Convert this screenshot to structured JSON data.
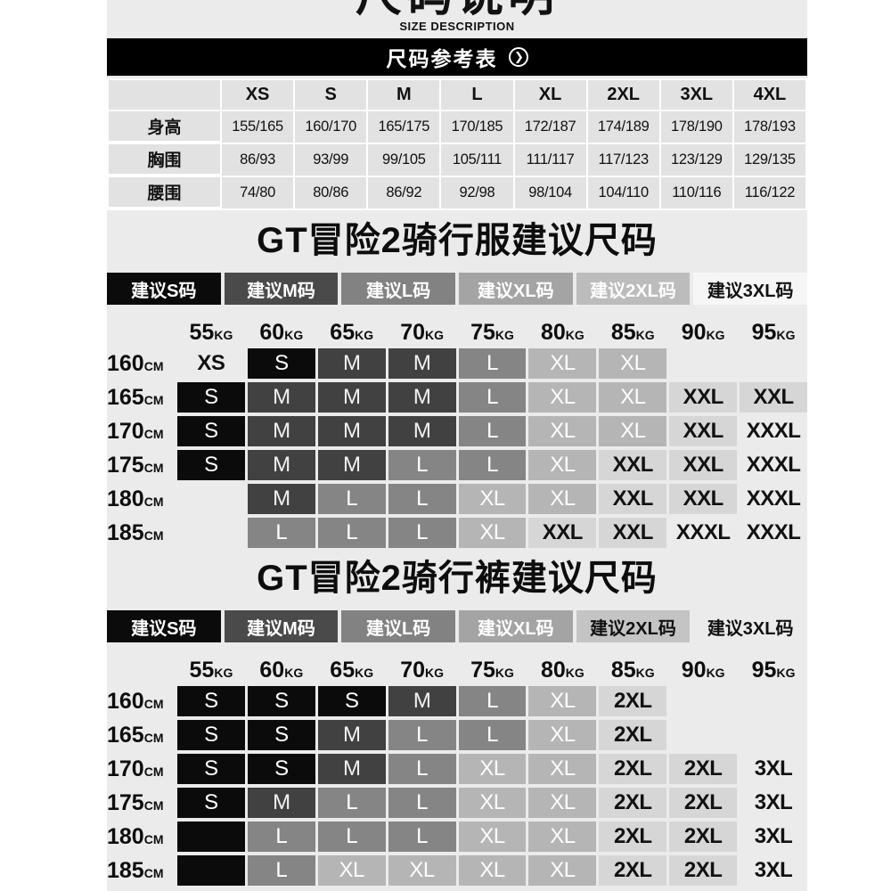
{
  "masthead": {
    "title_cn": "尺码说明",
    "title_en": "SIZE DESCRIPTION"
  },
  "banner": {
    "label": "尺码参考表",
    "icon": "chevron-right-circle-icon"
  },
  "reference_table": {
    "size_columns": [
      "XS",
      "S",
      "M",
      "L",
      "XL",
      "2XL",
      "3XL",
      "4XL"
    ],
    "rows": [
      {
        "label": "身高",
        "values": [
          "155/165",
          "160/170",
          "165/175",
          "170/185",
          "172/187",
          "174/189",
          "178/190",
          "178/193"
        ]
      },
      {
        "label": "胸围",
        "values": [
          "86/93",
          "93/99",
          "99/105",
          "105/111",
          "111/117",
          "117/123",
          "123/129",
          "129/135"
        ]
      },
      {
        "label": "腰围",
        "values": [
          "74/80",
          "80/86",
          "86/92",
          "92/98",
          "98/104",
          "104/110",
          "110/116",
          "116/122"
        ]
      }
    ]
  },
  "units": {
    "weight": "KG",
    "height": "CM"
  },
  "weight_headers": [
    "55",
    "60",
    "65",
    "70",
    "75",
    "80",
    "85",
    "90",
    "95"
  ],
  "colors": {
    "page_bg": "#ebebeb",
    "banner_bg": "#000000",
    "table_cell_bg": "#e2e2e2",
    "s": "#0b0b0b",
    "m": "#414141",
    "l": "#858585",
    "xl": "#b5b5b5",
    "xxl": "#d6d6d6",
    "legend_m": "#4a4a4a",
    "legend_l": "#828282",
    "legend_xl": "#a4a4a4",
    "legend_2xl_jersey": "#bcbcbc",
    "legend_3xl_jersey": "#f6f6f6",
    "legend_2xl_pants": "#c4c4c4"
  },
  "jersey": {
    "title": "GT冒险2骑行服建议尺码",
    "legend": [
      {
        "label": "建议S码",
        "style": "s"
      },
      {
        "label": "建议M码",
        "style": "m"
      },
      {
        "label": "建议L码",
        "style": "l"
      },
      {
        "label": "建议XL码",
        "style": "xl"
      },
      {
        "label": "建议2XL码",
        "style": "xxl-white"
      },
      {
        "label": "建议3XL码",
        "style": "white"
      }
    ],
    "rows": [
      {
        "height": "160",
        "cells": [
          [
            "XS",
            "plain"
          ],
          [
            "S",
            "s"
          ],
          [
            "M",
            "m"
          ],
          [
            "M",
            "m"
          ],
          [
            "L",
            "l"
          ],
          [
            "XL",
            "xl"
          ],
          [
            "XL",
            "xl"
          ],
          [
            "",
            "empty"
          ],
          [
            "",
            "empty"
          ]
        ]
      },
      {
        "height": "165",
        "cells": [
          [
            "S",
            "s"
          ],
          [
            "M",
            "m"
          ],
          [
            "M",
            "m"
          ],
          [
            "M",
            "m"
          ],
          [
            "L",
            "l"
          ],
          [
            "XL",
            "xl"
          ],
          [
            "XL",
            "xl"
          ],
          [
            "XXL",
            "xxl"
          ],
          [
            "XXL",
            "xxl"
          ]
        ]
      },
      {
        "height": "170",
        "cells": [
          [
            "S",
            "s"
          ],
          [
            "M",
            "m"
          ],
          [
            "M",
            "m"
          ],
          [
            "M",
            "m"
          ],
          [
            "L",
            "l"
          ],
          [
            "XL",
            "xl"
          ],
          [
            "XL",
            "xl"
          ],
          [
            "XXL",
            "xxl"
          ],
          [
            "XXXL",
            "plain"
          ]
        ]
      },
      {
        "height": "175",
        "cells": [
          [
            "S",
            "s"
          ],
          [
            "M",
            "m"
          ],
          [
            "M",
            "m"
          ],
          [
            "L",
            "l"
          ],
          [
            "L",
            "l"
          ],
          [
            "XL",
            "xl"
          ],
          [
            "XXL",
            "xxl"
          ],
          [
            "XXL",
            "xxl"
          ],
          [
            "XXXL",
            "plain"
          ]
        ]
      },
      {
        "height": "180",
        "cells": [
          [
            "",
            "empty"
          ],
          [
            "M",
            "m"
          ],
          [
            "L",
            "l"
          ],
          [
            "L",
            "l"
          ],
          [
            "XL",
            "xl"
          ],
          [
            "XL",
            "xl"
          ],
          [
            "XXL",
            "xxl"
          ],
          [
            "XXL",
            "xxl"
          ],
          [
            "XXXL",
            "plain"
          ]
        ]
      },
      {
        "height": "185",
        "cells": [
          [
            "",
            "empty"
          ],
          [
            "L",
            "l"
          ],
          [
            "L",
            "l"
          ],
          [
            "L",
            "l"
          ],
          [
            "XL",
            "xl"
          ],
          [
            "XXL",
            "xxl"
          ],
          [
            "XXL",
            "xxl"
          ],
          [
            "XXXL",
            "plain"
          ],
          [
            "XXXL",
            "plain"
          ]
        ]
      }
    ]
  },
  "pants": {
    "title": "GT冒险2骑行裤建议尺码",
    "legend": [
      {
        "label": "建议S码",
        "style": "s"
      },
      {
        "label": "建议M码",
        "style": "m"
      },
      {
        "label": "建议L码",
        "style": "l"
      },
      {
        "label": "建议XL码",
        "style": "xl"
      },
      {
        "label": "建议2XL码",
        "style": "xxl-black"
      },
      {
        "label": "建议3XL码",
        "style": "plain"
      }
    ],
    "rows": [
      {
        "height": "160",
        "cells": [
          [
            "S",
            "s"
          ],
          [
            "S",
            "s"
          ],
          [
            "S",
            "s"
          ],
          [
            "M",
            "m"
          ],
          [
            "L",
            "l"
          ],
          [
            "XL",
            "xl"
          ],
          [
            "2XL",
            "xxl"
          ],
          [
            "",
            "empty"
          ],
          [
            "",
            "empty"
          ]
        ]
      },
      {
        "height": "165",
        "cells": [
          [
            "S",
            "s"
          ],
          [
            "S",
            "s"
          ],
          [
            "M",
            "m"
          ],
          [
            "L",
            "l"
          ],
          [
            "L",
            "l"
          ],
          [
            "XL",
            "xl"
          ],
          [
            "2XL",
            "xxl"
          ],
          [
            "",
            "empty"
          ],
          [
            "",
            "empty"
          ]
        ]
      },
      {
        "height": "170",
        "cells": [
          [
            "S",
            "s"
          ],
          [
            "S",
            "s"
          ],
          [
            "M",
            "m"
          ],
          [
            "L",
            "l"
          ],
          [
            "XL",
            "xl"
          ],
          [
            "XL",
            "xl"
          ],
          [
            "2XL",
            "xxl"
          ],
          [
            "2XL",
            "xxl"
          ],
          [
            "3XL",
            "plain"
          ]
        ]
      },
      {
        "height": "175",
        "cells": [
          [
            "S",
            "s"
          ],
          [
            "M",
            "m"
          ],
          [
            "L",
            "l"
          ],
          [
            "L",
            "l"
          ],
          [
            "XL",
            "xl"
          ],
          [
            "XL",
            "xl"
          ],
          [
            "2XL",
            "xxl"
          ],
          [
            "2XL",
            "xxl"
          ],
          [
            "3XL",
            "plain"
          ]
        ]
      },
      {
        "height": "180",
        "cells": [
          [
            "",
            "black"
          ],
          [
            "L",
            "l"
          ],
          [
            "L",
            "l"
          ],
          [
            "L",
            "l"
          ],
          [
            "XL",
            "xl"
          ],
          [
            "XL",
            "xl"
          ],
          [
            "2XL",
            "xxl"
          ],
          [
            "2XL",
            "xxl"
          ],
          [
            "3XL",
            "plain"
          ]
        ]
      },
      {
        "height": "185",
        "cells": [
          [
            "",
            "black"
          ],
          [
            "L",
            "l"
          ],
          [
            "XL",
            "xl"
          ],
          [
            "XL",
            "xl"
          ],
          [
            "XL",
            "xl"
          ],
          [
            "XL",
            "xl"
          ],
          [
            "2XL",
            "xxl"
          ],
          [
            "2XL",
            "xxl"
          ],
          [
            "3XL",
            "plain"
          ]
        ]
      }
    ]
  }
}
